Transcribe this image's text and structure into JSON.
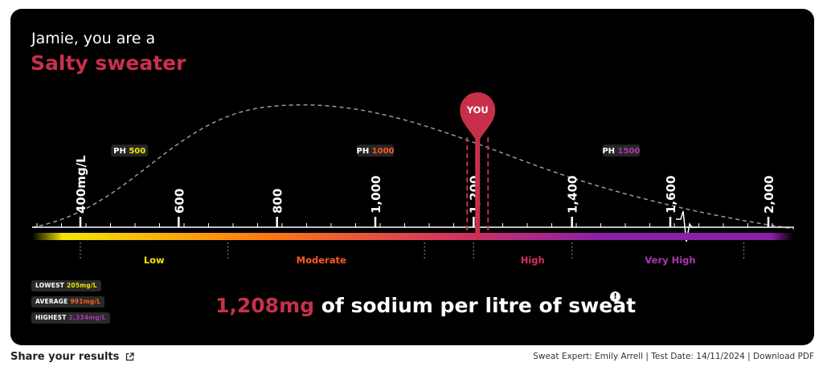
{
  "result": {
    "intro": "Jamie, you are a",
    "classification": "Salty sweater",
    "marker_label": "YOU",
    "sodium_value": 1208,
    "summary_value": "1,208mg",
    "summary_text": " of sodium per litre of sweat",
    "info_glyph": "!"
  },
  "scale": {
    "ticks": [
      {
        "value": 400,
        "label": "400mg/L"
      },
      {
        "value": 600,
        "label": "600"
      },
      {
        "value": 800,
        "label": "800"
      },
      {
        "value": 1000,
        "label": "1,000"
      },
      {
        "value": 1200,
        "label": "1,200"
      },
      {
        "value": 1400,
        "label": "1,400"
      },
      {
        "value": 1600,
        "label": "1,600"
      },
      {
        "value": 2000,
        "label": "2,000"
      }
    ],
    "products": [
      {
        "prefix": "PH",
        "value": "500",
        "color": "#f2e600",
        "at": 500
      },
      {
        "prefix": "PH",
        "value": "1000",
        "color": "#ff5a1f",
        "at": 1000
      },
      {
        "prefix": "PH",
        "value": "1500",
        "color": "#a63bb0",
        "at": 1500
      }
    ],
    "zones": [
      {
        "label": "Low",
        "color": "#f2e600",
        "at": 550
      },
      {
        "label": "Moderate",
        "color": "#ff5a1f",
        "at": 890
      },
      {
        "label": "High",
        "color": "#d6335e",
        "at": 1320
      },
      {
        "label": "Very High",
        "color": "#a63bb0",
        "at": 1600
      }
    ],
    "zone_bounds": [
      400,
      700,
      1100,
      1200,
      1400,
      1900
    ],
    "colors": {
      "bar_start": "#f2e600",
      "bar_mid": "#ff7a10",
      "bar_high": "#d6335e",
      "bar_end": "#8a1fa8",
      "marker": "#c8304a",
      "curve": "#9a9a9a"
    }
  },
  "stats": {
    "lowest": {
      "label": "LOWEST",
      "value": "205mg/L",
      "color": "#f2e600"
    },
    "average": {
      "label": "AVERAGE",
      "value": "991mg/L",
      "color": "#ff5a1f"
    },
    "highest": {
      "label": "HIGHEST",
      "value": "2,334mg/L",
      "color": "#a63bb0"
    }
  },
  "footer": {
    "share_label": "Share your results",
    "meta_text": "Sweat Expert: Emily Arrell | Test Date: 14/11/2024 | ",
    "download_label": "Download PDF"
  },
  "icons": {
    "share": "external-link-icon",
    "info": "info-icon",
    "break": "axis-break-icon"
  }
}
